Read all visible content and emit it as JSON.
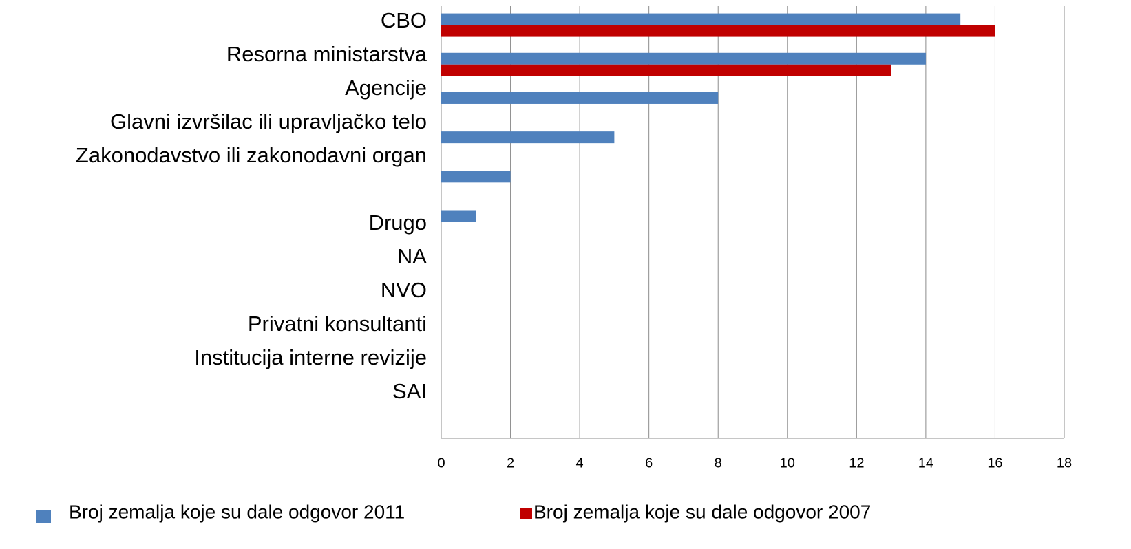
{
  "chart_data": {
    "type": "bar",
    "orientation": "horizontal",
    "categories": [
      "CBO",
      "Resorna ministarstva",
      "Agencije",
      "Glavni izvršilac ili upravljačko telo",
      "Zakonodavstvo ili zakonodavni organ",
      "Drugo",
      "NA",
      "NVO",
      "Privatni konsultanti",
      "Institucija interne revizije",
      "SAI"
    ],
    "series": [
      {
        "name": "Broj zemalja koje su dale odgovor 2011",
        "color": "#4f81bd",
        "values": [
          15,
          14,
          8,
          5,
          2,
          1,
          0,
          0,
          0,
          0,
          0
        ]
      },
      {
        "name": "Broj zemalja koje su dale odgovor 2007",
        "color": "#c00000",
        "values": [
          16,
          13,
          0,
          0,
          0,
          0,
          0,
          0,
          0,
          0,
          0
        ]
      }
    ],
    "xlim": [
      0,
      18
    ],
    "xticks": [
      0,
      2,
      4,
      6,
      8,
      10,
      12,
      14,
      16,
      18
    ],
    "grid": true
  }
}
